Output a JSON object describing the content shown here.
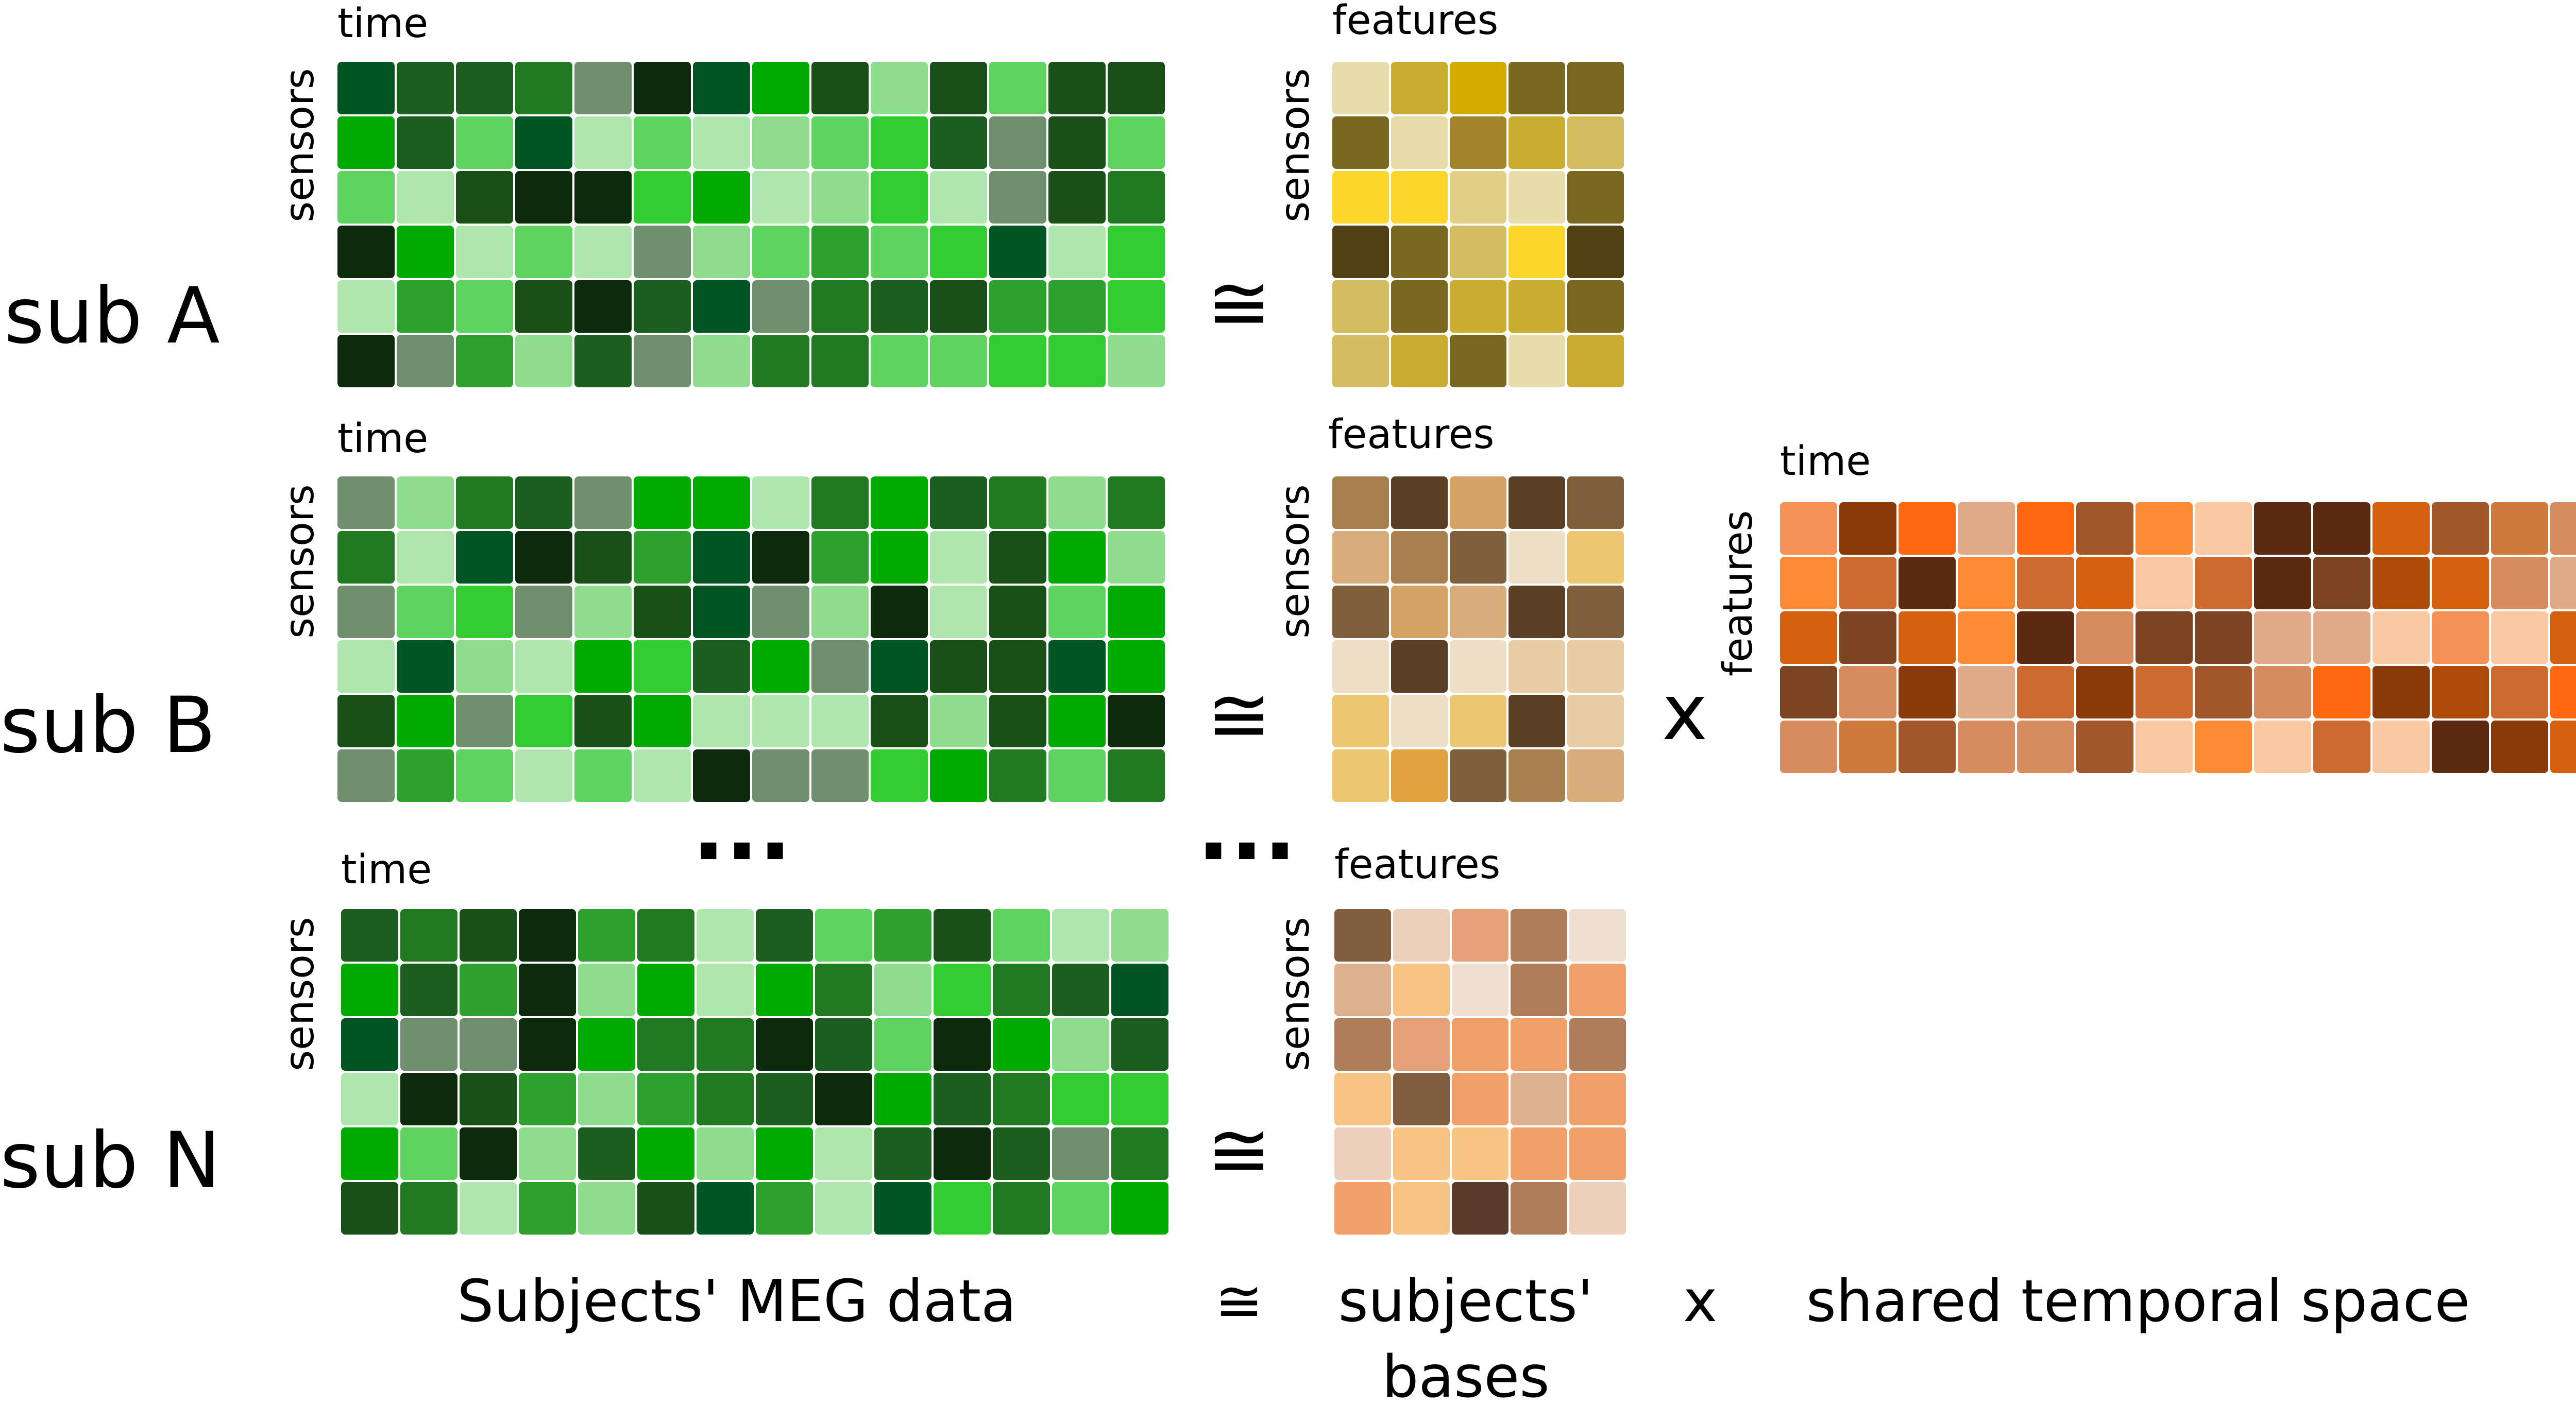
{
  "subjects": [
    {
      "label": "sub A",
      "time_label": "time",
      "sensors_label": "sensors",
      "features_label": "features",
      "basis_sensors_label": "sensors",
      "approx_symbol": "≅"
    },
    {
      "label": "sub B",
      "time_label": "time",
      "sensors_label": "sensors",
      "features_label": "features",
      "basis_sensors_label": "sensors",
      "approx_symbol": "≅"
    },
    {
      "label": "sub N",
      "time_label": "time",
      "sensors_label": "sensors",
      "features_label": "features",
      "basis_sensors_label": "sensors",
      "approx_symbol": "≅"
    }
  ],
  "ellipsis": {
    "data": "...",
    "bases": "..."
  },
  "shared": {
    "time_label": "time",
    "features_label": "features",
    "times_symbol": "x"
  },
  "bottom": {
    "data": "Subjects' MEG data",
    "approx": "≅",
    "bases_line1": "subjects'",
    "bases_line2": "bases",
    "times": "x",
    "shared": "shared temporal space"
  },
  "palettes": {
    "green": [
      "#1b5e20",
      "#5fd35f",
      "#217a21",
      "#6f8f6f",
      "#2ea02e",
      "#0d2a0d",
      "#aee6ae",
      "#00aa00",
      "#33cc33",
      "#005522",
      "#185018",
      "#8fdc8f"
    ],
    "gold": [
      "#d4bd60",
      "#524015",
      "#fcd62b",
      "#d6ab00",
      "#7a6820",
      "#a2852b",
      "#c9ac30",
      "#e8dcaa",
      "#e0cf85"
    ],
    "tan": [
      "#d9ac7c",
      "#5a3f25",
      "#ecc670",
      "#e2a240",
      "#80603c",
      "#a8804f",
      "#d4a365",
      "#e8cca6",
      "#eedec5"
    ],
    "peach": [
      "#ddb08f",
      "#5a3a29",
      "#f8c483",
      "#f0a068",
      "#825e41",
      "#b07d5b",
      "#e6a07a",
      "#ecd0bb",
      "#f0dfd0"
    ],
    "orange": [
      "#8a3a08",
      "#cf7a3d",
      "#cc6a30",
      "#a1572a",
      "#d78c60",
      "#f59057",
      "#7c4422",
      "#d56010",
      "#fd8a35",
      "#ff6810",
      "#e0aa88",
      "#fbc8a4",
      "#5c2a10",
      "#b04a08"
    ]
  }
}
